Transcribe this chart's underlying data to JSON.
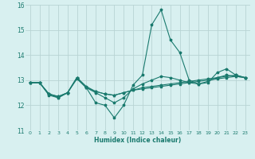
{
  "x_values": [
    0,
    1,
    2,
    3,
    4,
    5,
    6,
    7,
    8,
    9,
    10,
    11,
    12,
    13,
    14,
    15,
    16,
    17,
    18,
    19,
    20,
    21,
    22,
    23
  ],
  "line1": [
    12.9,
    12.9,
    12.4,
    12.3,
    12.5,
    13.1,
    12.7,
    12.1,
    12.0,
    11.5,
    12.0,
    12.8,
    13.2,
    15.2,
    15.8,
    14.6,
    14.1,
    13.0,
    12.85,
    12.9,
    13.3,
    13.45,
    13.2,
    13.1
  ],
  "line2": [
    12.9,
    12.9,
    12.45,
    12.3,
    12.5,
    13.1,
    12.7,
    12.55,
    12.45,
    12.4,
    12.5,
    12.6,
    12.65,
    12.7,
    12.75,
    12.8,
    12.85,
    12.9,
    12.95,
    13.0,
    13.05,
    13.1,
    13.15,
    13.1
  ],
  "line3": [
    12.9,
    12.9,
    12.45,
    12.35,
    12.5,
    13.1,
    12.75,
    12.55,
    12.45,
    12.4,
    12.5,
    12.6,
    12.7,
    12.75,
    12.8,
    12.85,
    12.9,
    12.95,
    13.0,
    13.05,
    13.1,
    13.15,
    13.2,
    13.1
  ],
  "line4": [
    12.9,
    12.9,
    12.45,
    12.35,
    12.5,
    13.05,
    12.7,
    12.5,
    12.3,
    12.1,
    12.3,
    12.65,
    12.85,
    13.0,
    13.15,
    13.1,
    13.0,
    12.9,
    12.85,
    12.95,
    13.1,
    13.2,
    13.15,
    13.1
  ],
  "line_color": "#1a7a6e",
  "bg_color": "#d8f0f0",
  "grid_color": "#b8d4d4",
  "xlabel": "Humidex (Indice chaleur)",
  "ylim": [
    11,
    16
  ],
  "xlim": [
    -0.5,
    23.5
  ],
  "yticks": [
    11,
    12,
    13,
    14,
    15,
    16
  ],
  "xticks": [
    0,
    1,
    2,
    3,
    4,
    5,
    6,
    7,
    8,
    9,
    10,
    11,
    12,
    13,
    14,
    15,
    16,
    17,
    18,
    19,
    20,
    21,
    22,
    23
  ]
}
